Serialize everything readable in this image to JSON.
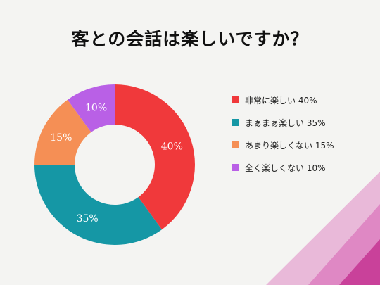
{
  "chart_data": {
    "type": "pie",
    "title": "客との会話は楽しいですか？",
    "donut": true,
    "categories": [
      "非常に楽しい",
      "まぁまぁ楽しい",
      "あまり楽しくない",
      "全く楽しくない"
    ],
    "values": [
      40,
      35,
      15,
      10
    ],
    "slice_labels": [
      "40%",
      "35%",
      "15%",
      "10%"
    ],
    "colors": [
      "#f0393b",
      "#1597a5",
      "#f58f55",
      "#b960e6"
    ],
    "legend": {
      "placement": "right",
      "entries": [
        "非常に楽しい 40%",
        "まぁまぁ楽しい 35%",
        "あまり楽しくない 15%",
        "全く楽しくない 10%"
      ]
    }
  }
}
